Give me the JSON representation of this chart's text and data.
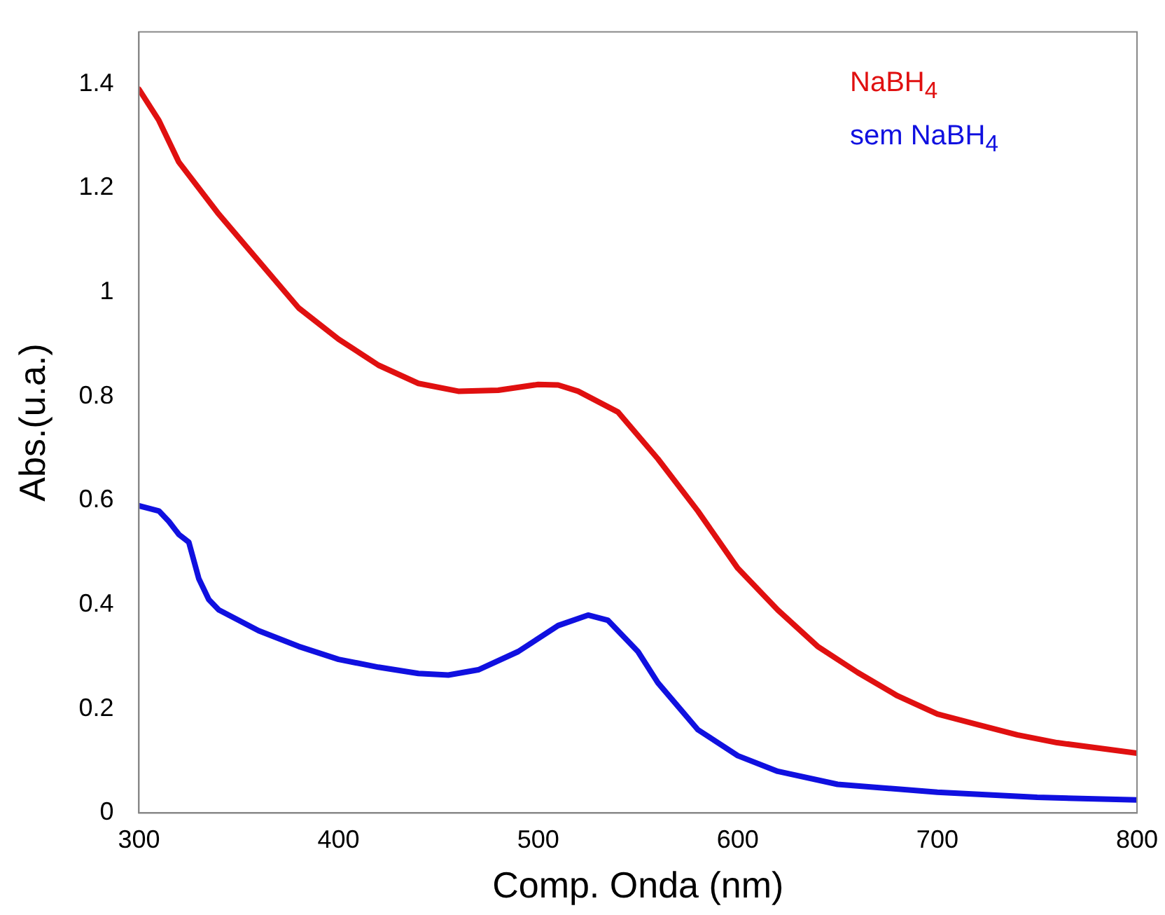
{
  "chart_data": {
    "type": "line",
    "xlabel": "Comp. Onda (nm)",
    "ylabel": "Abs.(u.a.)",
    "xlim": [
      300,
      800
    ],
    "xticks": [
      300,
      400,
      500,
      600,
      700,
      800
    ],
    "ylim": [
      0,
      1.5
    ],
    "yticks": [
      0,
      0.2,
      0.4,
      0.6,
      0.8,
      1,
      1.2,
      1.4
    ],
    "grid": false,
    "legend": "top right",
    "marker": "none",
    "line_style": "solid",
    "series": [
      {
        "name": "NaBH$_{4}$",
        "color": "#e01010",
        "x": [
          300,
          310,
          320,
          340,
          360,
          380,
          400,
          420,
          440,
          460,
          480,
          500,
          510,
          520,
          540,
          560,
          580,
          600,
          620,
          640,
          660,
          680,
          700,
          720,
          740,
          760,
          780,
          800
        ],
        "values": [
          1.39,
          1.33,
          1.25,
          1.15,
          1.06,
          0.97,
          0.91,
          0.86,
          0.825,
          0.81,
          0.812,
          0.823,
          0.822,
          0.81,
          0.77,
          0.68,
          0.58,
          0.47,
          0.39,
          0.32,
          0.27,
          0.225,
          0.19,
          0.17,
          0.15,
          0.135,
          0.125,
          0.115
        ]
      },
      {
        "name": "sem NaBH$_{4}$",
        "color": "#1010e0",
        "x": [
          300,
          305,
          310,
          315,
          320,
          325,
          330,
          335,
          340,
          360,
          380,
          400,
          420,
          440,
          455,
          470,
          490,
          510,
          525,
          535,
          550,
          560,
          580,
          600,
          620,
          650,
          700,
          750,
          800
        ],
        "values": [
          0.59,
          0.585,
          0.58,
          0.56,
          0.535,
          0.52,
          0.45,
          0.41,
          0.39,
          0.35,
          0.32,
          0.295,
          0.28,
          0.268,
          0.265,
          0.275,
          0.31,
          0.36,
          0.38,
          0.37,
          0.31,
          0.25,
          0.16,
          0.11,
          0.08,
          0.055,
          0.04,
          0.03,
          0.025
        ]
      }
    ]
  }
}
